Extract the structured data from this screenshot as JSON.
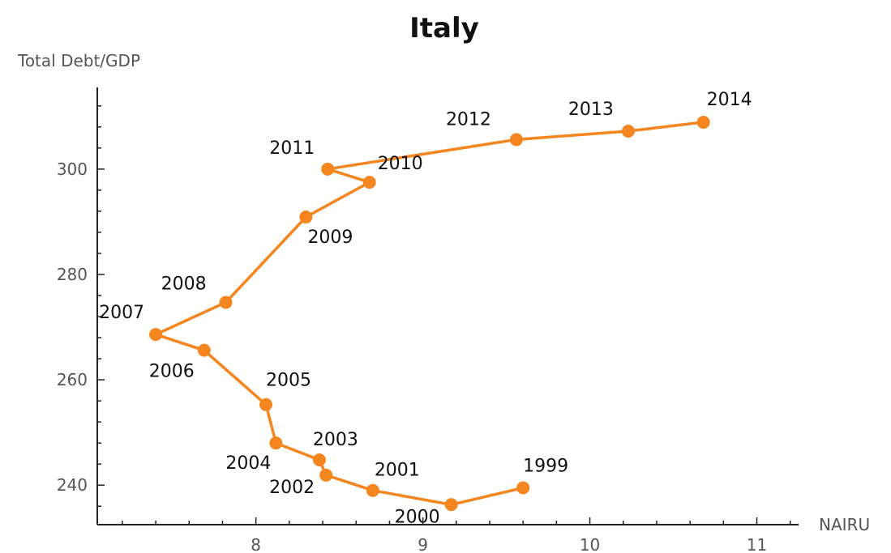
{
  "chart_data": {
    "type": "line",
    "title": "Italy",
    "xlabel": "NAIRU",
    "ylabel": "Total Debt/GDP",
    "xlim": [
      7.05,
      11.25
    ],
    "ylim": [
      232.5,
      315.5
    ],
    "x_ticks": [
      8,
      9,
      10,
      11
    ],
    "y_ticks": [
      240,
      260,
      280,
      300
    ],
    "grid": false,
    "color": "#f5851f",
    "points": [
      {
        "label": "1999",
        "x": 9.6,
        "y": 239.5
      },
      {
        "label": "2000",
        "x": 9.17,
        "y": 236.3
      },
      {
        "label": "2001",
        "x": 8.7,
        "y": 239.0
      },
      {
        "label": "2002",
        "x": 8.42,
        "y": 241.9
      },
      {
        "label": "2003",
        "x": 8.38,
        "y": 244.8
      },
      {
        "label": "2004",
        "x": 8.12,
        "y": 248.0
      },
      {
        "label": "2005",
        "x": 8.06,
        "y": 255.3
      },
      {
        "label": "2006",
        "x": 7.69,
        "y": 265.6
      },
      {
        "label": "2007",
        "x": 7.4,
        "y": 268.6
      },
      {
        "label": "2008",
        "x": 7.82,
        "y": 274.7
      },
      {
        "label": "2009",
        "x": 8.3,
        "y": 290.9
      },
      {
        "label": "2010",
        "x": 8.68,
        "y": 297.5
      },
      {
        "label": "2011",
        "x": 8.43,
        "y": 300.0
      },
      {
        "label": "2012",
        "x": 9.56,
        "y": 305.6
      },
      {
        "label": "2013",
        "x": 10.23,
        "y": 307.2
      },
      {
        "label": "2014",
        "x": 10.68,
        "y": 308.9
      }
    ]
  }
}
